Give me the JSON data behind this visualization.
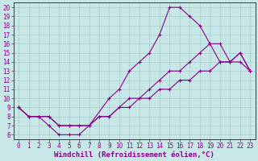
{
  "xlabel": "Windchill (Refroidissement éolien,°C)",
  "xlim": [
    0,
    23
  ],
  "ylim": [
    6,
    20
  ],
  "xticks": [
    0,
    1,
    2,
    3,
    4,
    5,
    6,
    7,
    8,
    9,
    10,
    11,
    12,
    13,
    14,
    15,
    16,
    17,
    18,
    19,
    20,
    21,
    22,
    23
  ],
  "yticks": [
    6,
    7,
    8,
    9,
    10,
    11,
    12,
    13,
    14,
    15,
    16,
    17,
    18,
    19,
    20
  ],
  "bg_color": "#c8e8e8",
  "grid_color": "#a8cccc",
  "line_color": "#880088",
  "curve1_x": [
    0,
    1,
    2,
    3,
    4,
    5,
    6,
    7,
    9,
    10,
    11,
    12,
    13,
    14,
    15,
    16,
    17,
    18,
    19,
    20,
    21,
    22,
    23
  ],
  "curve1_y": [
    9,
    8,
    8,
    7,
    6,
    6,
    6,
    7,
    10,
    11,
    13,
    14,
    15,
    17,
    20,
    20,
    19,
    18,
    16,
    14,
    14,
    15,
    13
  ],
  "curve2_x": [
    0,
    1,
    2,
    3,
    4,
    5,
    6,
    7,
    8,
    9,
    10,
    11,
    12,
    13,
    14,
    15,
    16,
    17,
    18,
    19,
    20,
    21,
    22,
    23
  ],
  "curve2_y": [
    9,
    8,
    8,
    8,
    7,
    7,
    7,
    7,
    8,
    8,
    9,
    10,
    10,
    11,
    12,
    13,
    13,
    14,
    15,
    16,
    16,
    14,
    15,
    13
  ],
  "curve3_x": [
    0,
    1,
    2,
    3,
    4,
    5,
    6,
    7,
    8,
    9,
    10,
    11,
    12,
    13,
    14,
    15,
    16,
    17,
    18,
    19,
    20,
    21,
    22,
    23
  ],
  "curve3_y": [
    9,
    8,
    8,
    8,
    7,
    7,
    7,
    7,
    8,
    8,
    9,
    9,
    10,
    10,
    11,
    11,
    12,
    12,
    13,
    13,
    14,
    14,
    14,
    13
  ],
  "tick_fontsize": 5.5,
  "label_fontsize": 6.5
}
